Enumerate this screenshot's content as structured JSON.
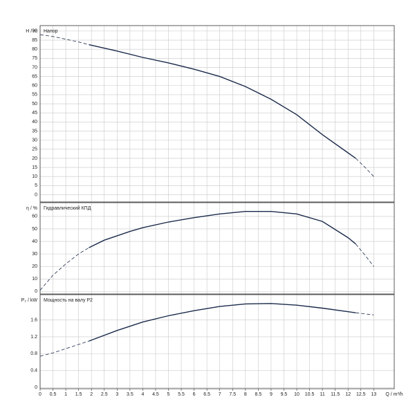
{
  "chart_data": [
    {
      "type": "line",
      "ylabel": "H / m",
      "title": "Напор",
      "xlim": [
        0,
        13.8
      ],
      "ylim": [
        -4,
        93
      ],
      "yticks": [
        0,
        5,
        10,
        15,
        20,
        25,
        30,
        35,
        40,
        45,
        50,
        55,
        60,
        65,
        70,
        75,
        80,
        85,
        90
      ],
      "series": [
        {
          "style": "dashed",
          "color": "#1a2a4a",
          "x": [
            0,
            0.5,
            1,
            1.5,
            1.9
          ],
          "values": [
            88,
            87,
            85.5,
            84,
            82.5
          ]
        },
        {
          "style": "solid",
          "color": "#1a2a4a",
          "x": [
            1.9,
            3,
            4,
            5,
            6,
            7,
            8,
            9,
            10,
            11,
            12,
            12.3
          ],
          "values": [
            82.5,
            79,
            75.5,
            72.5,
            69,
            65,
            59.5,
            52.5,
            44,
            33,
            23,
            20
          ]
        },
        {
          "style": "dashed",
          "color": "#1a2a4a",
          "x": [
            12.3,
            12.7,
            13
          ],
          "values": [
            20,
            14.5,
            10
          ]
        }
      ]
    },
    {
      "type": "line",
      "ylabel": "η / %",
      "title": "Гидравлический КПД",
      "xlim": [
        0,
        13.8
      ],
      "ylim": [
        -2,
        71
      ],
      "yticks": [
        0,
        10,
        20,
        30,
        40,
        50,
        60
      ],
      "series": [
        {
          "style": "dashed",
          "color": "#1a2a4a",
          "x": [
            0,
            0.5,
            1,
            1.5,
            1.9
          ],
          "values": [
            1,
            13,
            22,
            30,
            35
          ]
        },
        {
          "style": "solid",
          "color": "#1a2a4a",
          "x": [
            1.9,
            2.5,
            3,
            3.5,
            4,
            5,
            6,
            7,
            8,
            9,
            10,
            11,
            12,
            12.3
          ],
          "values": [
            35,
            41,
            44.5,
            48,
            51,
            55.5,
            59,
            62,
            64,
            64,
            62,
            56,
            43,
            38
          ]
        },
        {
          "style": "dashed",
          "color": "#1a2a4a",
          "x": [
            12.3,
            12.7,
            13
          ],
          "values": [
            38,
            28,
            20
          ]
        }
      ]
    },
    {
      "type": "line",
      "ylabel": "P₂ / kW",
      "title": "Мощность на валу P2",
      "xlabel": "Q / m³/h",
      "xlim": [
        0,
        13.8
      ],
      "ylim": [
        -0.03,
        2.2
      ],
      "xticks": [
        0,
        0.5,
        1,
        1.5,
        2,
        2.5,
        3,
        3.5,
        4,
        4.5,
        5,
        5.5,
        6,
        6.5,
        7,
        7.5,
        8,
        8.5,
        9,
        9.5,
        10,
        10.5,
        11,
        11.5,
        12,
        12.5,
        13
      ],
      "yticks": [
        0,
        0.4,
        0.8,
        1.2,
        1.6
      ],
      "series": [
        {
          "style": "dashed",
          "color": "#1a2a4a",
          "x": [
            0,
            0.5,
            1,
            1.5,
            1.9
          ],
          "values": [
            0.74,
            0.82,
            0.92,
            1.02,
            1.1
          ]
        },
        {
          "style": "solid",
          "color": "#1a2a4a",
          "x": [
            1.9,
            3,
            4,
            5,
            6,
            7,
            8,
            9,
            10,
            11,
            12.3
          ],
          "values": [
            1.1,
            1.35,
            1.55,
            1.7,
            1.82,
            1.92,
            1.98,
            1.99,
            1.95,
            1.88,
            1.77
          ]
        },
        {
          "style": "dashed",
          "color": "#1a2a4a",
          "x": [
            12.3,
            13
          ],
          "values": [
            1.77,
            1.72
          ]
        }
      ]
    }
  ]
}
